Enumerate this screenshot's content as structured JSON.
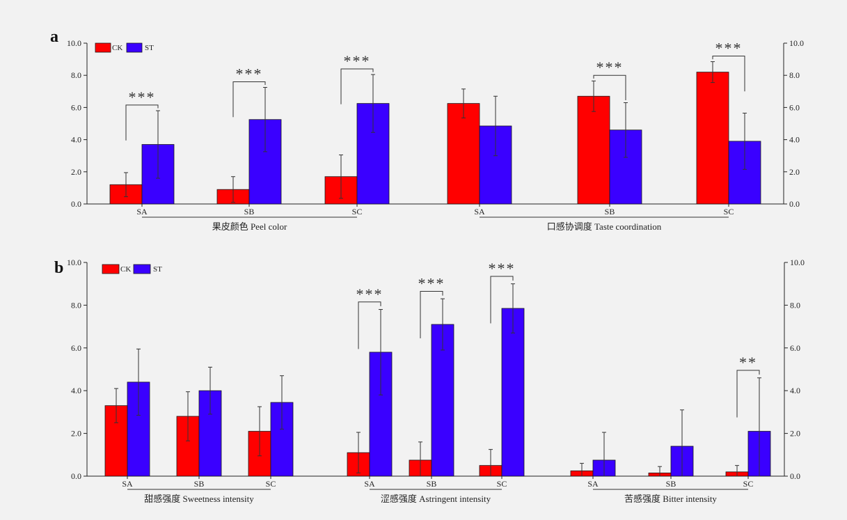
{
  "chart_data": [
    {
      "type": "bar",
      "panel_label": "a",
      "ylim": [
        0,
        10
      ],
      "yticks": [
        "0.0",
        "2.0",
        "4.0",
        "6.0",
        "8.0",
        "10.0"
      ],
      "legend": [
        "CK",
        "ST"
      ],
      "colors": {
        "CK": "#ff0000",
        "ST": "#3a00ff",
        "edge": "#1a1a1a"
      },
      "groups": [
        {
          "label": "果皮颜色  Peel color",
          "categories": [
            "SA",
            "SB",
            "SC"
          ],
          "series": [
            {
              "name": "CK",
              "values": [
                1.2,
                0.9,
                1.7
              ],
              "errors": [
                0.75,
                0.8,
                1.35
              ]
            },
            {
              "name": "ST",
              "values": [
                3.7,
                5.25,
                6.25
              ],
              "errors": [
                2.1,
                2.0,
                1.8
              ]
            }
          ],
          "significance": [
            "***",
            "***",
            "***"
          ]
        },
        {
          "label": "口感协调度  Taste coordination",
          "categories": [
            "SA",
            "SB",
            "SC"
          ],
          "series": [
            {
              "name": "CK",
              "values": [
                6.25,
                6.7,
                8.2
              ],
              "errors": [
                0.9,
                0.95,
                0.65
              ]
            },
            {
              "name": "ST",
              "values": [
                4.85,
                4.6,
                3.9
              ],
              "errors": [
                1.85,
                1.7,
                1.75
              ]
            }
          ],
          "significance": [
            "",
            "***",
            "***"
          ]
        }
      ]
    },
    {
      "type": "bar",
      "panel_label": "b",
      "ylim": [
        0,
        10
      ],
      "yticks": [
        "0.0",
        "2.0",
        "4.0",
        "6.0",
        "8.0",
        "10.0"
      ],
      "legend": [
        "CK",
        "ST"
      ],
      "colors": {
        "CK": "#ff0000",
        "ST": "#3a00ff",
        "edge": "#1a1a1a"
      },
      "groups": [
        {
          "label": "甜感强度  Sweetness intensity",
          "categories": [
            "SA",
            "SB",
            "SC"
          ],
          "series": [
            {
              "name": "CK",
              "values": [
                3.3,
                2.8,
                2.1
              ],
              "errors": [
                0.8,
                1.15,
                1.15
              ]
            },
            {
              "name": "ST",
              "values": [
                4.4,
                4.0,
                3.45
              ],
              "errors": [
                1.55,
                1.1,
                1.25
              ]
            }
          ],
          "significance": [
            "",
            "",
            ""
          ]
        },
        {
          "label": "涩感强度  Astringent intensity",
          "categories": [
            "SA",
            "SB",
            "SC"
          ],
          "series": [
            {
              "name": "CK",
              "values": [
                1.1,
                0.75,
                0.5
              ],
              "errors": [
                0.95,
                0.85,
                0.75
              ]
            },
            {
              "name": "ST",
              "values": [
                5.8,
                7.1,
                7.85
              ],
              "errors": [
                2.0,
                1.2,
                1.15
              ]
            }
          ],
          "significance": [
            "***",
            "***",
            "***"
          ]
        },
        {
          "label": "苦感强度  Bitter intensity",
          "categories": [
            "SA",
            "SB",
            "SC"
          ],
          "series": [
            {
              "name": "CK",
              "values": [
                0.25,
                0.15,
                0.2
              ],
              "errors": [
                0.35,
                0.3,
                0.3
              ]
            },
            {
              "name": "ST",
              "values": [
                0.75,
                1.4,
                2.1
              ],
              "errors": [
                1.3,
                1.7,
                2.5
              ]
            }
          ],
          "significance": [
            "",
            "",
            "**"
          ]
        }
      ]
    }
  ]
}
